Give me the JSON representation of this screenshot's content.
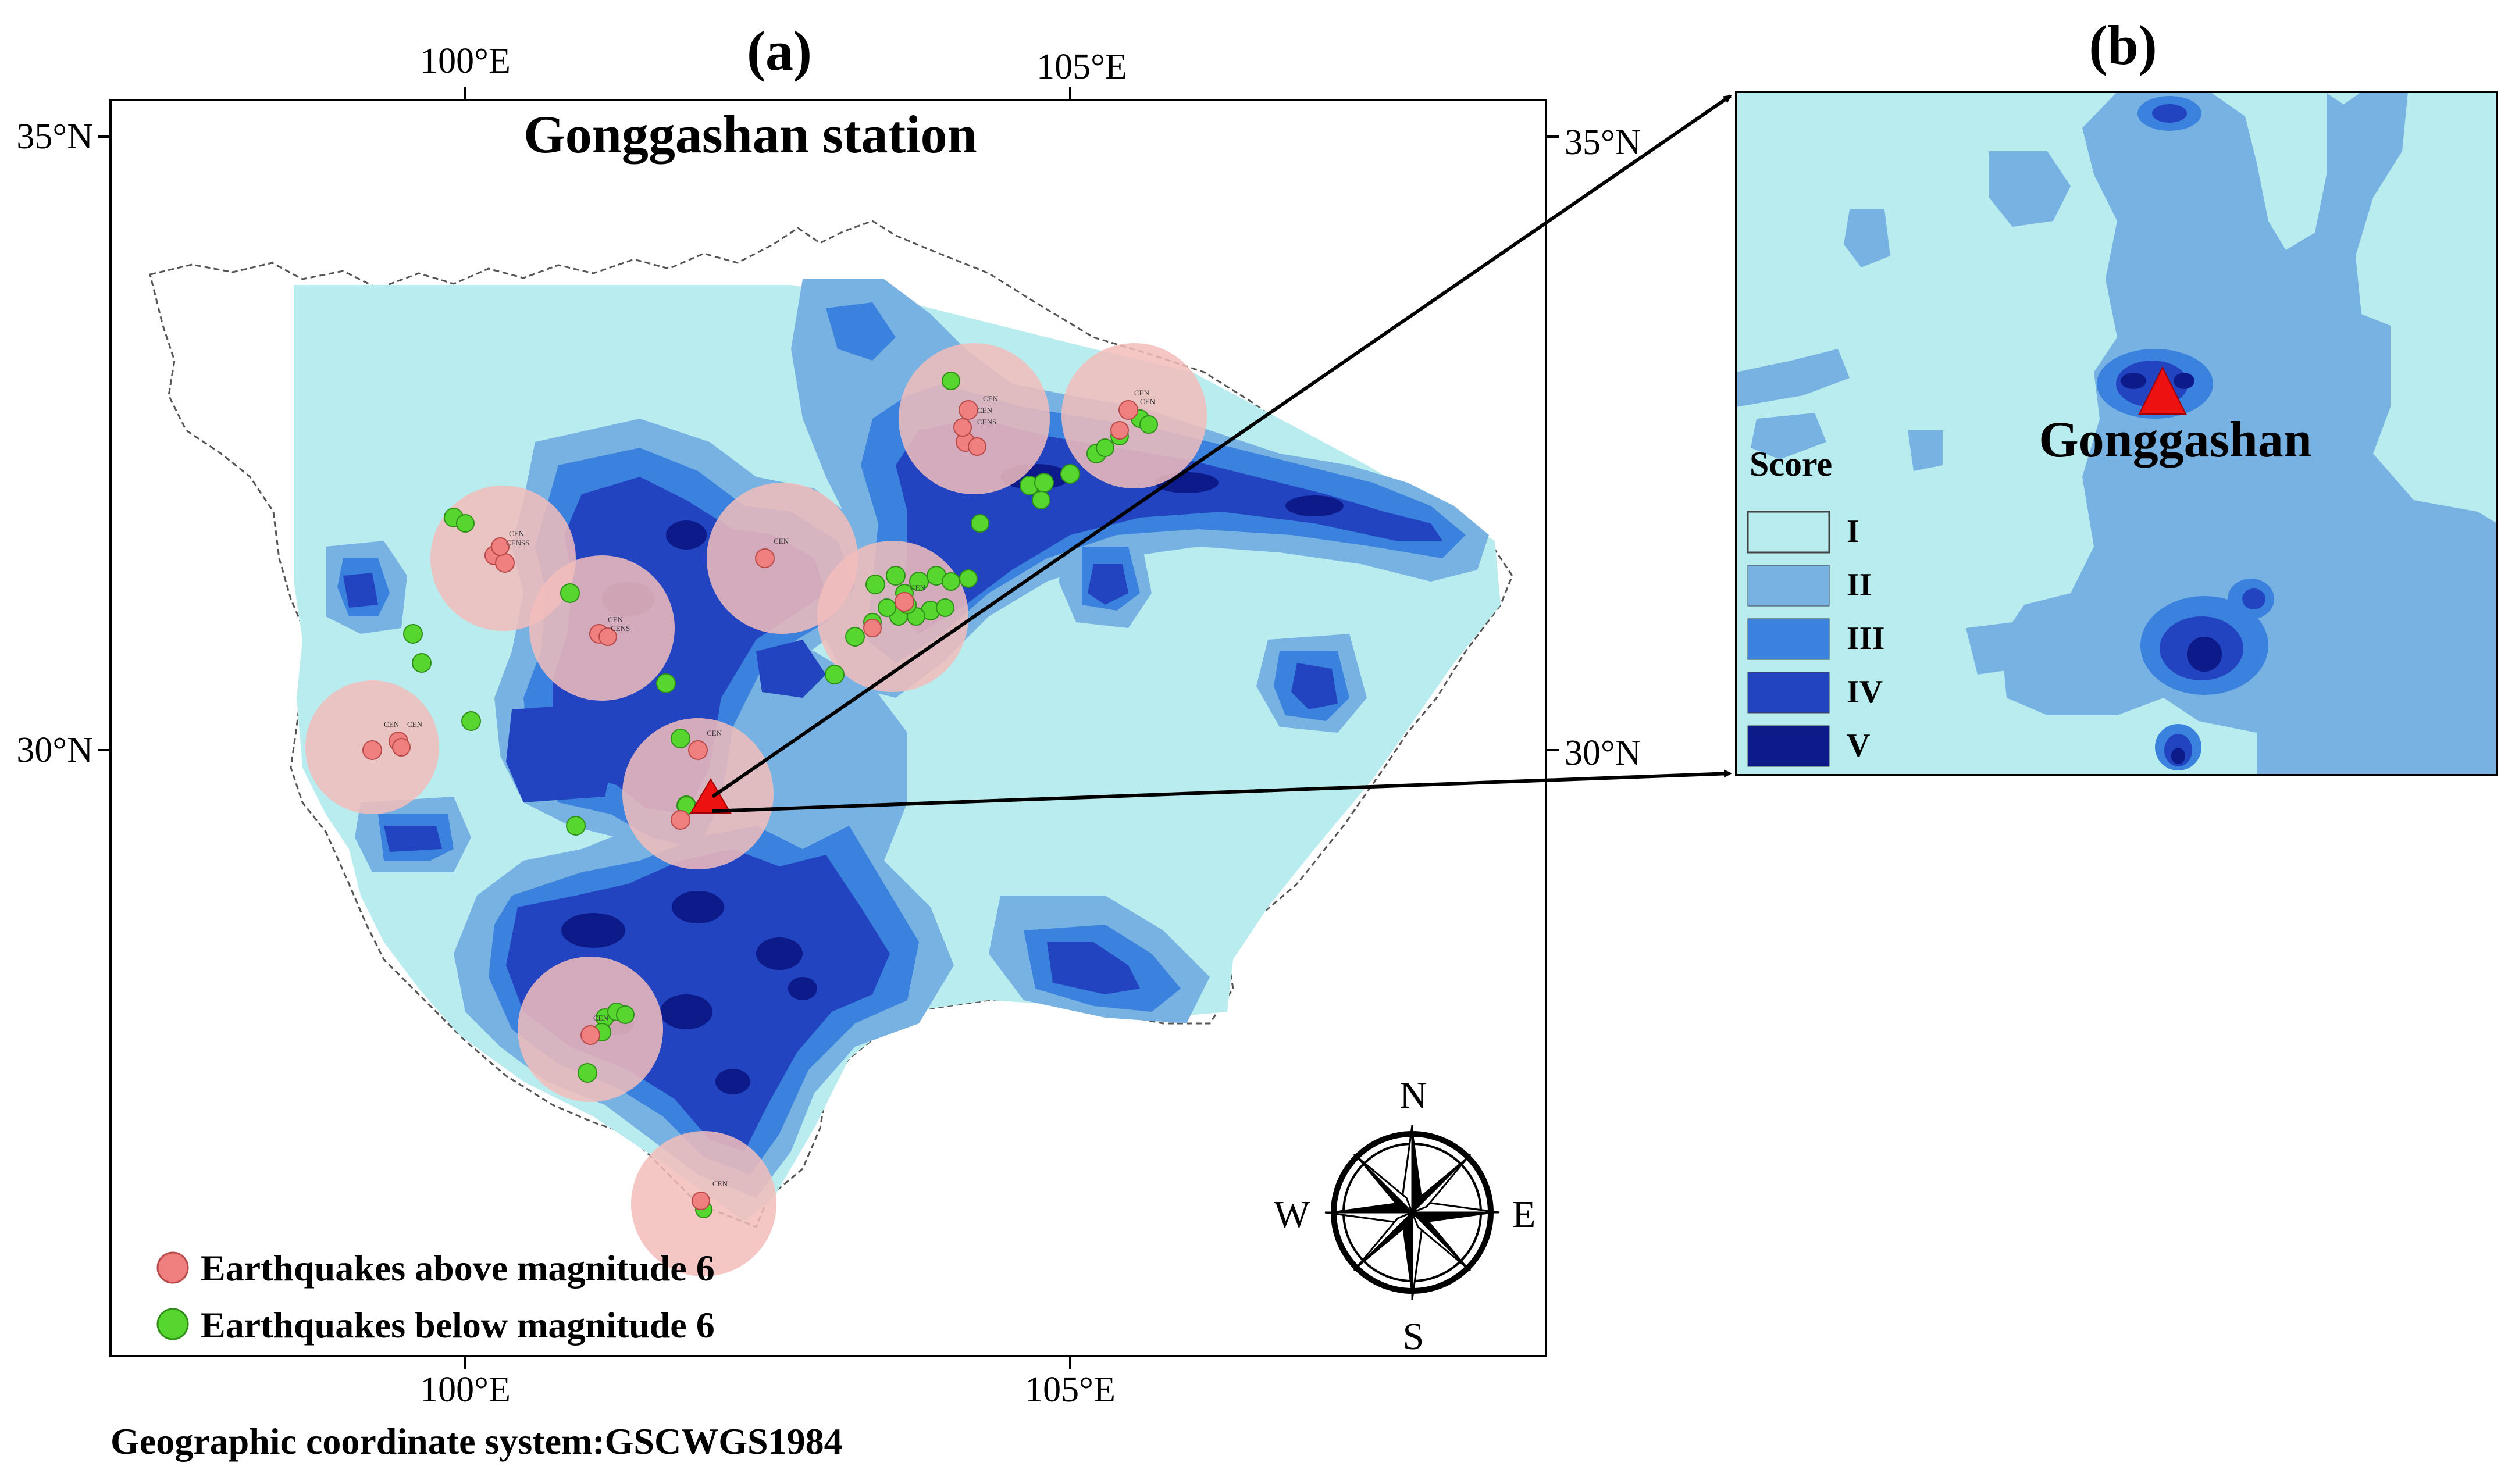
{
  "panel_a": {
    "label": "(a)",
    "title": "Gonggashan station",
    "top_ticks": [
      "100°E",
      "105°E"
    ],
    "bottom_ticks": [
      "100°E",
      "105°E"
    ],
    "left_ticks": [
      "35°N",
      "30°N"
    ],
    "right_ticks": [
      "35°N",
      "30°N"
    ],
    "station_name": "Gonggashan",
    "legend": {
      "above": "Earthquakes above magnitude 6",
      "below": "Earthquakes below magnitude 6"
    },
    "compass": {
      "n": "N",
      "s": "S",
      "e": "E",
      "w": "W"
    },
    "footer": "Geographic coordinate system:GSCWGS1984"
  },
  "panel_b": {
    "label": "(b)",
    "station_label": "Gonggashan",
    "legend_title": "Score",
    "classes": [
      "I",
      "II",
      "III",
      "IV",
      "V"
    ]
  },
  "colors": {
    "score_I": "#b9ecee",
    "score_II": "#78b2e3",
    "score_III": "#3a82de",
    "score_IV": "#2244c0",
    "score_V": "#0c1a8a",
    "buffer_pink": "#f2bdbb",
    "eq_above": "#f07f7f",
    "eq_below": "#56d62f",
    "station": "#ee1111"
  }
}
